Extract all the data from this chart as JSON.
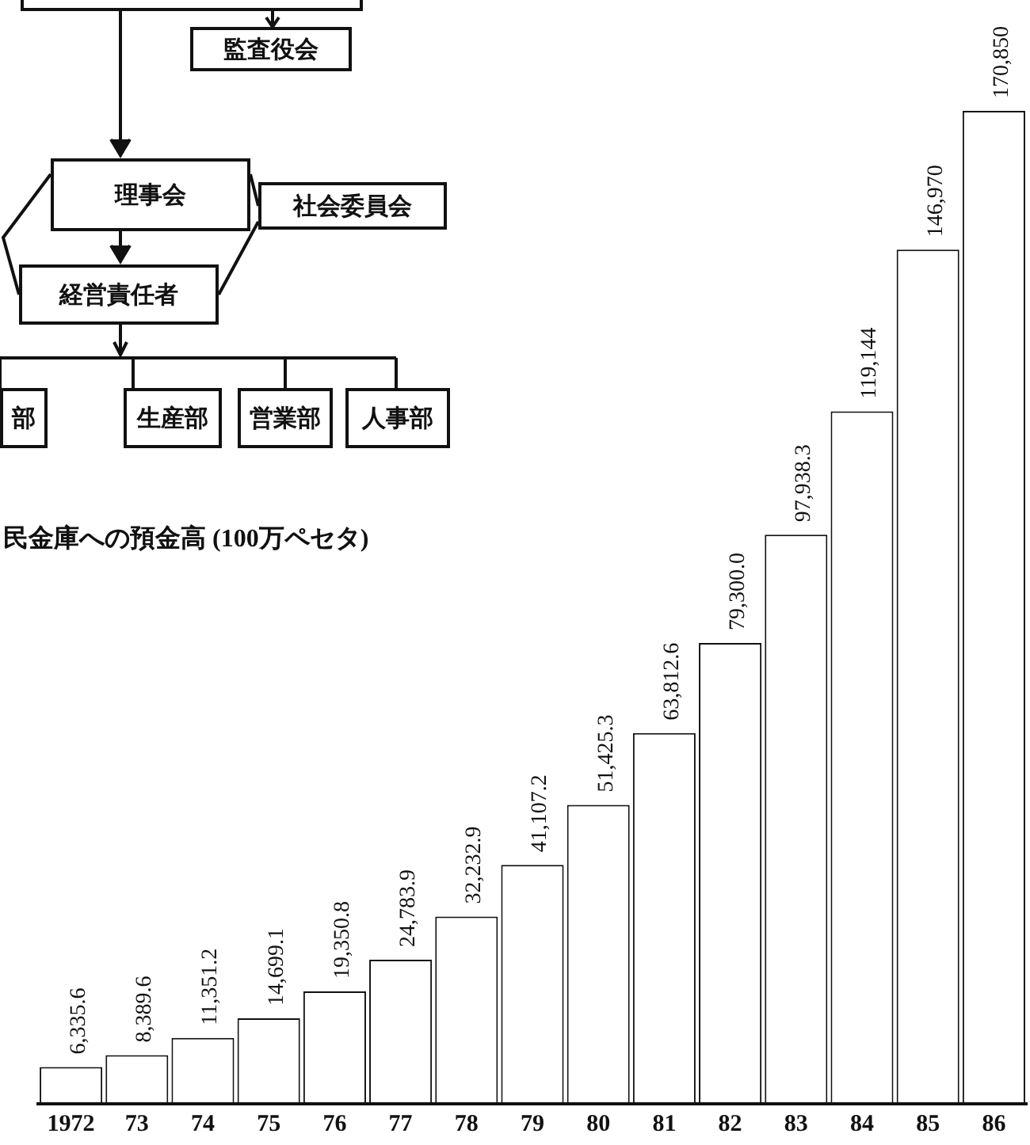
{
  "chart_data": {
    "type": "bar",
    "title": "民金庫への預金高 (100万ペセタ)",
    "categories": [
      "1972",
      "73",
      "74",
      "75",
      "76",
      "77",
      "78",
      "79",
      "80",
      "81",
      "82",
      "83",
      "84",
      "85",
      "86"
    ],
    "values": [
      6335.6,
      8389.6,
      11351.2,
      14699.1,
      19350.8,
      24783.9,
      32232.9,
      41107.2,
      51425.3,
      63812.6,
      79300.0,
      97938.3,
      119144,
      146970,
      170850
    ],
    "value_labels": [
      "6,335.6",
      "8,389.6",
      "11,351.2",
      "14,699.1",
      "19,350.8",
      "24,783.9",
      "32,232.9",
      "41,107.2",
      "51,425.3",
      "63,812.6",
      "79,300.0",
      "97,938.3",
      "119,144",
      "146,970",
      "170,850"
    ],
    "color": "#ffffff",
    "relative": false,
    "grid": false,
    "legend": false,
    "annotations": [
      "監査役会",
      "理事会",
      "社会委員会",
      "経営責任者",
      "部",
      "生産部",
      "営業部",
      "人事部"
    ]
  }
}
